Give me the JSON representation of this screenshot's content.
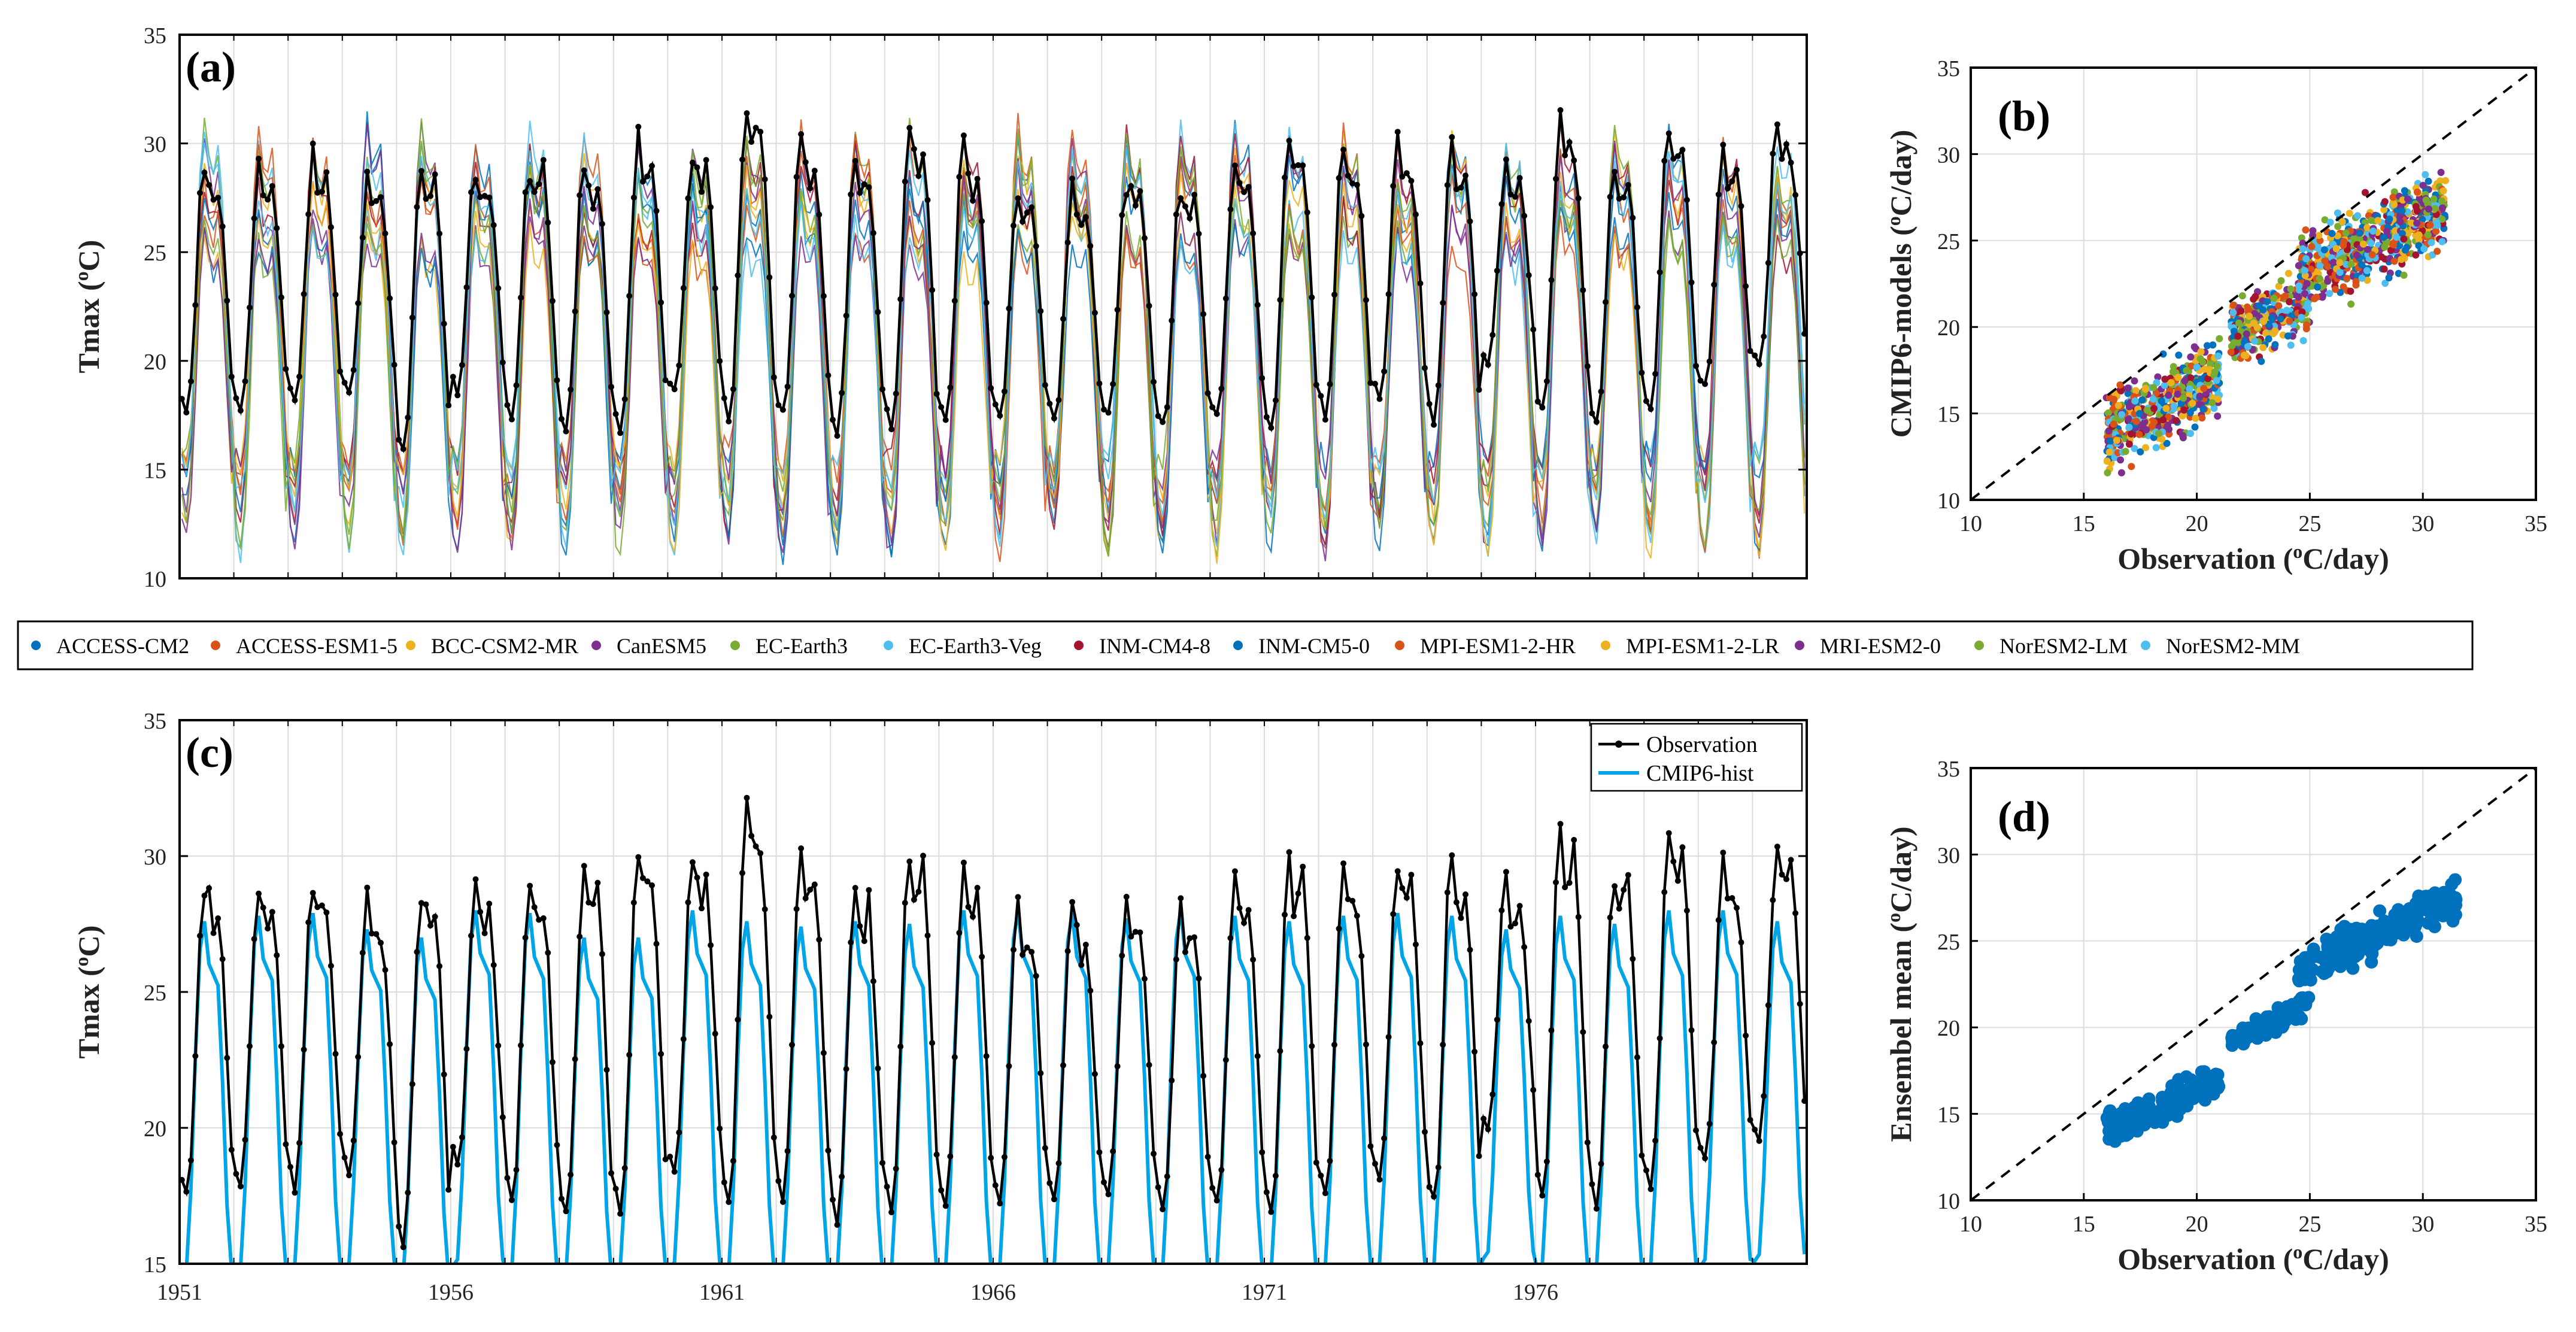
{
  "legend_models": [
    {
      "name": "ACCESS-CM2",
      "color": "#0072BD"
    },
    {
      "name": "ACCESS-ESM1-5",
      "color": "#D95319"
    },
    {
      "name": "BCC-CSM2-MR",
      "color": "#EDB120"
    },
    {
      "name": "CanESM5",
      "color": "#7E2F8E"
    },
    {
      "name": "EC-Earth3",
      "color": "#77AC30"
    },
    {
      "name": "EC-Earth3-Veg",
      "color": "#4DBEEE"
    },
    {
      "name": "INM-CM4-8",
      "color": "#A2142F"
    },
    {
      "name": "INM-CM5-0",
      "color": "#0072BD"
    },
    {
      "name": "MPI-ESM1-2-HR",
      "color": "#D95319"
    },
    {
      "name": "MPI-ESM1-2-LR",
      "color": "#EDB120"
    },
    {
      "name": "MRI-ESM2-0",
      "color": "#7E2F8E"
    },
    {
      "name": "NorESM2-LM",
      "color": "#77AC30"
    },
    {
      "name": "NorESM2-MM",
      "color": "#4DBEEE"
    }
  ],
  "chart_data": [
    {
      "id": "a",
      "panel_label": "(a)",
      "type": "line",
      "ylabel": "Tmax (",
      "ylabel_sup": "o",
      "ylabel_tail": "C)",
      "ylim": [
        10,
        35
      ],
      "yticks": [
        10,
        15,
        20,
        25,
        30,
        35
      ],
      "xlim": [
        1951,
        1981
      ],
      "grid": true,
      "observation_annual": {
        "years": [
          1951,
          1952,
          1953,
          1954,
          1955,
          1956,
          1957,
          1958,
          1959,
          1960,
          1961,
          1962,
          1963,
          1964,
          1965,
          1966,
          1967,
          1968,
          1969,
          1970,
          1971,
          1972,
          1973,
          1974,
          1975,
          1976,
          1977,
          1978,
          1979,
          1980
        ],
        "winter_min": [
          17.5,
          17.8,
          18.1,
          18.4,
          15.9,
          18.5,
          17.3,
          16.8,
          17.0,
          18.3,
          17.3,
          17.4,
          16.7,
          16.9,
          17.2,
          17.5,
          17.3,
          17.5,
          17.0,
          17.3,
          16.8,
          17.6,
          18.2,
          17.2,
          20.0,
          17.5,
          17.3,
          17.6,
          18.8,
          19.6
        ],
        "summer_max": [
          28.9,
          28.8,
          29.0,
          28.3,
          28.9,
          28.9,
          29.2,
          29.4,
          30.0,
          29.7,
          31.9,
          29.9,
          28.8,
          30.5,
          29.6,
          28.0,
          28.0,
          28.4,
          28.2,
          29.0,
          30.2,
          29.6,
          29.6,
          29.6,
          29.0,
          31.0,
          29.3,
          31.0,
          29.4,
          30.7
        ]
      },
      "models_annual": {
        "summer_max_range": [
          26.0,
          31.8
        ],
        "winter_min_range": [
          10.0,
          16.0
        ]
      }
    },
    {
      "id": "b",
      "panel_label": "(b)",
      "type": "scatter",
      "xlabel": "Observation (",
      "xlabel_sup": "o",
      "xlabel_tail": "C/day)",
      "ylabel": "CMIP6-models (",
      "ylabel_sup": "o",
      "ylabel_tail": "C/day)",
      "xlim": [
        10,
        35
      ],
      "ylim": [
        10,
        35
      ],
      "xticks": [
        10,
        15,
        20,
        25,
        30,
        35
      ],
      "yticks": [
        10,
        15,
        20,
        25,
        30,
        35
      ],
      "reference_line": "1:1 dashed",
      "grid": true,
      "clusters": [
        {
          "x_range": [
            16,
            21
          ],
          "y_center": 15.5,
          "y_spread": 3.0
        },
        {
          "x_range": [
            21.5,
            25
          ],
          "y_center": 20.5,
          "y_spread": 2.5
        },
        {
          "x_range": [
            24.5,
            31
          ],
          "y_center": 25.0,
          "y_spread": 3.0
        }
      ]
    },
    {
      "id": "c",
      "panel_label": "(c)",
      "type": "line",
      "ylabel": "Tmax (",
      "ylabel_sup": "o",
      "ylabel_tail": "C)",
      "ylim": [
        15,
        35
      ],
      "yticks": [
        15,
        20,
        25,
        30,
        35
      ],
      "xlim": [
        1951,
        1981
      ],
      "xticks": [
        1951,
        1956,
        1961,
        1966,
        1971,
        1976
      ],
      "grid": true,
      "series": [
        {
          "name": "Observation",
          "color": "#000000"
        },
        {
          "name": "CMIP6-hist",
          "color": "#00A5E8"
        }
      ],
      "observation_annual": {
        "years": [
          1951,
          1952,
          1953,
          1954,
          1955,
          1956,
          1957,
          1958,
          1959,
          1960,
          1961,
          1962,
          1963,
          1964,
          1965,
          1966,
          1967,
          1968,
          1969,
          1970,
          1971,
          1972,
          1973,
          1974,
          1975,
          1976,
          1977,
          1978,
          1979,
          1980
        ],
        "winter_min": [
          17.5,
          17.8,
          18.1,
          18.4,
          15.9,
          18.5,
          17.3,
          16.8,
          17.0,
          18.3,
          17.3,
          17.4,
          16.7,
          16.9,
          17.2,
          17.5,
          17.3,
          17.5,
          17.0,
          17.3,
          16.8,
          17.6,
          18.2,
          17.2,
          20.0,
          17.5,
          17.3,
          17.6,
          18.8,
          19.6
        ],
        "summer_max": [
          28.9,
          28.8,
          29.0,
          28.3,
          28.9,
          28.9,
          29.2,
          29.4,
          30.0,
          29.7,
          31.9,
          29.9,
          28.8,
          30.5,
          29.6,
          28.0,
          28.0,
          28.4,
          28.2,
          29.0,
          30.2,
          29.6,
          29.6,
          29.6,
          29.0,
          31.0,
          29.3,
          31.0,
          29.4,
          30.7
        ]
      },
      "cmip6_hist_annual": {
        "winter_min": [
          14.5,
          14.6,
          14.7,
          14.8,
          14.3,
          14.9,
          14.5,
          14.4,
          14.6,
          14.8,
          14.5,
          14.6,
          14.4,
          14.5,
          14.6,
          14.7,
          14.6,
          14.7,
          14.5,
          14.6,
          14.4,
          14.7,
          14.8,
          14.6,
          15.2,
          14.7,
          14.6,
          14.7,
          14.9,
          15.1
        ],
        "summer_max": [
          27.6,
          27.8,
          27.9,
          27.3,
          27.0,
          28.0,
          27.9,
          27.0,
          27.0,
          28.0,
          27.6,
          27.4,
          27.6,
          27.5,
          28.0,
          28.0,
          27.9,
          27.7,
          28.0,
          27.8,
          27.6,
          27.8,
          27.9,
          27.8,
          27.3,
          27.8,
          27.5,
          28.0,
          28.0,
          27.6
        ]
      }
    },
    {
      "id": "d",
      "panel_label": "(d)",
      "type": "scatter",
      "xlabel": "Observation (",
      "xlabel_sup": "o",
      "xlabel_tail": "C/day)",
      "ylabel": "Ensembel mean (",
      "ylabel_sup": "o",
      "ylabel_tail": "C/day)",
      "xlim": [
        10,
        35
      ],
      "ylim": [
        10,
        35
      ],
      "xticks": [
        10,
        15,
        20,
        25,
        30,
        35
      ],
      "yticks": [
        10,
        15,
        20,
        25,
        30,
        35
      ],
      "reference_line": "1:1 dashed",
      "grid": true,
      "point_color": "#0072BD",
      "clusters": [
        {
          "x_range": [
            16,
            21
          ],
          "y_center": 15.5,
          "y_spread": 1.4
        },
        {
          "x_range": [
            21.5,
            25
          ],
          "y_center": 20.3,
          "y_spread": 1.0
        },
        {
          "x_range": [
            24.5,
            31.5
          ],
          "y_center": 25.5,
          "y_spread": 1.6
        }
      ]
    }
  ]
}
